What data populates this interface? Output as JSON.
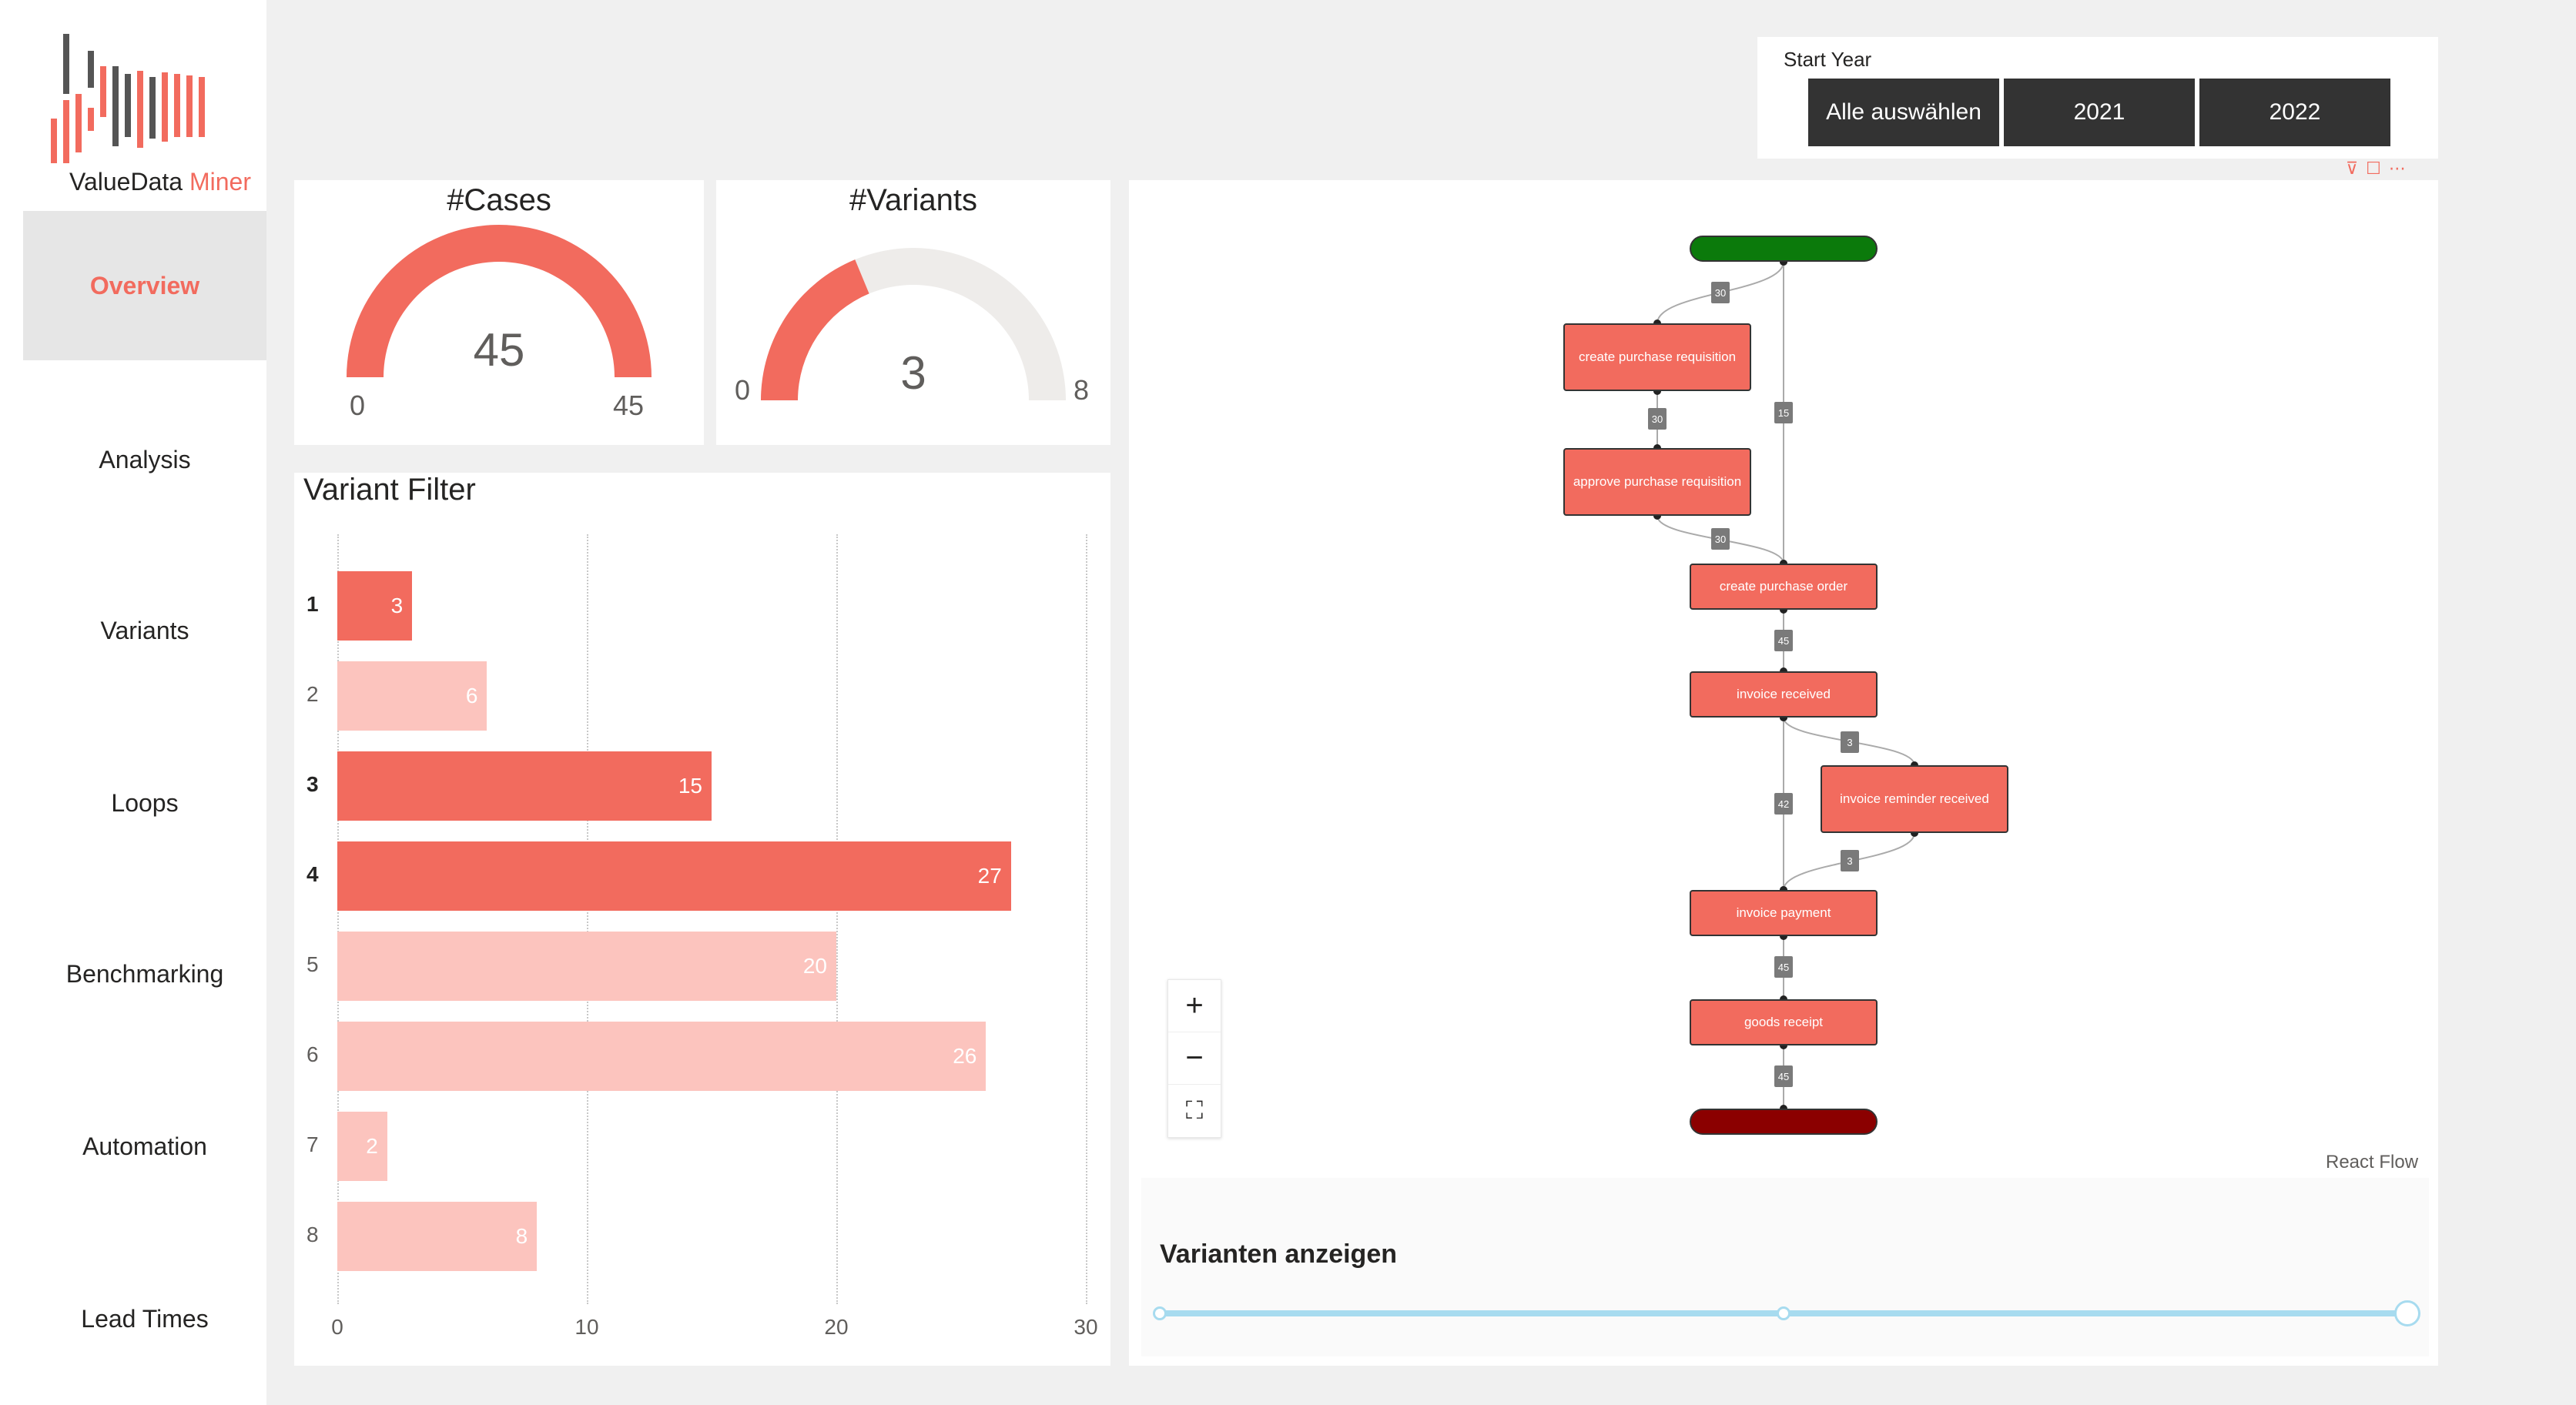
{
  "sidebar": {
    "logo": {
      "name_part1": "ValueData",
      "name_part2": "Miner"
    },
    "items": [
      {
        "label": "Overview",
        "active": true
      },
      {
        "label": "Analysis",
        "active": false
      },
      {
        "label": "Variants",
        "active": false
      },
      {
        "label": "Loops",
        "active": false
      },
      {
        "label": "Benchmarking",
        "active": false
      },
      {
        "label": "Automation",
        "active": false
      },
      {
        "label": "Lead Times",
        "active": false
      }
    ]
  },
  "start_year": {
    "title": "Start Year",
    "options": [
      "Alle auswählen",
      "2021",
      "2022"
    ]
  },
  "cases_gauge": {
    "title": "#Cases",
    "value": 45,
    "min": 0,
    "max": 45,
    "value_label": "45",
    "min_label": "0",
    "max_label": "45"
  },
  "variants_gauge": {
    "title": "#Variants",
    "value": 3,
    "min": 0,
    "max": 8,
    "value_label": "3",
    "min_label": "0",
    "max_label": "8"
  },
  "variant_filter": {
    "title": "Variant Filter",
    "x_ticks": [
      "0",
      "10",
      "20",
      "30"
    ],
    "chart_data": {
      "type": "bar",
      "orientation": "horizontal",
      "categories": [
        "1",
        "2",
        "3",
        "4",
        "5",
        "6",
        "7",
        "8"
      ],
      "values": [
        3,
        6,
        15,
        27,
        20,
        26,
        2,
        8
      ],
      "selected": [
        true,
        false,
        true,
        true,
        false,
        false,
        false,
        false
      ],
      "value_labels": [
        "3",
        "6",
        "15",
        "27",
        "20",
        "26",
        "2",
        "8"
      ],
      "xlim": [
        0,
        30
      ],
      "colors": {
        "selected": "#f26b5e",
        "unselected": "#fcc4be"
      }
    }
  },
  "process_flow": {
    "nodes": {
      "create_pr": "create purchase requisition",
      "approve_pr": "approve purchase requisition",
      "create_po": "create purchase order",
      "invoice_received": "invoice received",
      "invoice_reminder": "invoice reminder received",
      "invoice_payment": "invoice payment",
      "goods_receipt": "goods receipt"
    },
    "edges": {
      "start_to_create_pr": "30",
      "start_to_create_po": "15",
      "create_pr_to_approve": "30",
      "approve_to_create_po": "30",
      "po_to_invoice": "45",
      "invoice_to_reminder": "3",
      "invoice_to_payment": "42",
      "reminder_to_payment": "3",
      "payment_to_goods": "45",
      "goods_to_end": "45"
    },
    "controls": {
      "zoom_in": "+",
      "zoom_out": "−",
      "fit": "⛶"
    },
    "attribution": "React Flow",
    "colors": {
      "start": "#0b7a0b",
      "end": "#8b0000",
      "node": "#f26b5e"
    }
  },
  "variant_slider": {
    "title": "Varianten anzeigen",
    "value_fraction": 1.0,
    "mid_fraction": 0.5
  },
  "colors": {
    "accent": "#f26b5e",
    "accent_light": "#fcc4be",
    "track": "#a7dbef"
  }
}
